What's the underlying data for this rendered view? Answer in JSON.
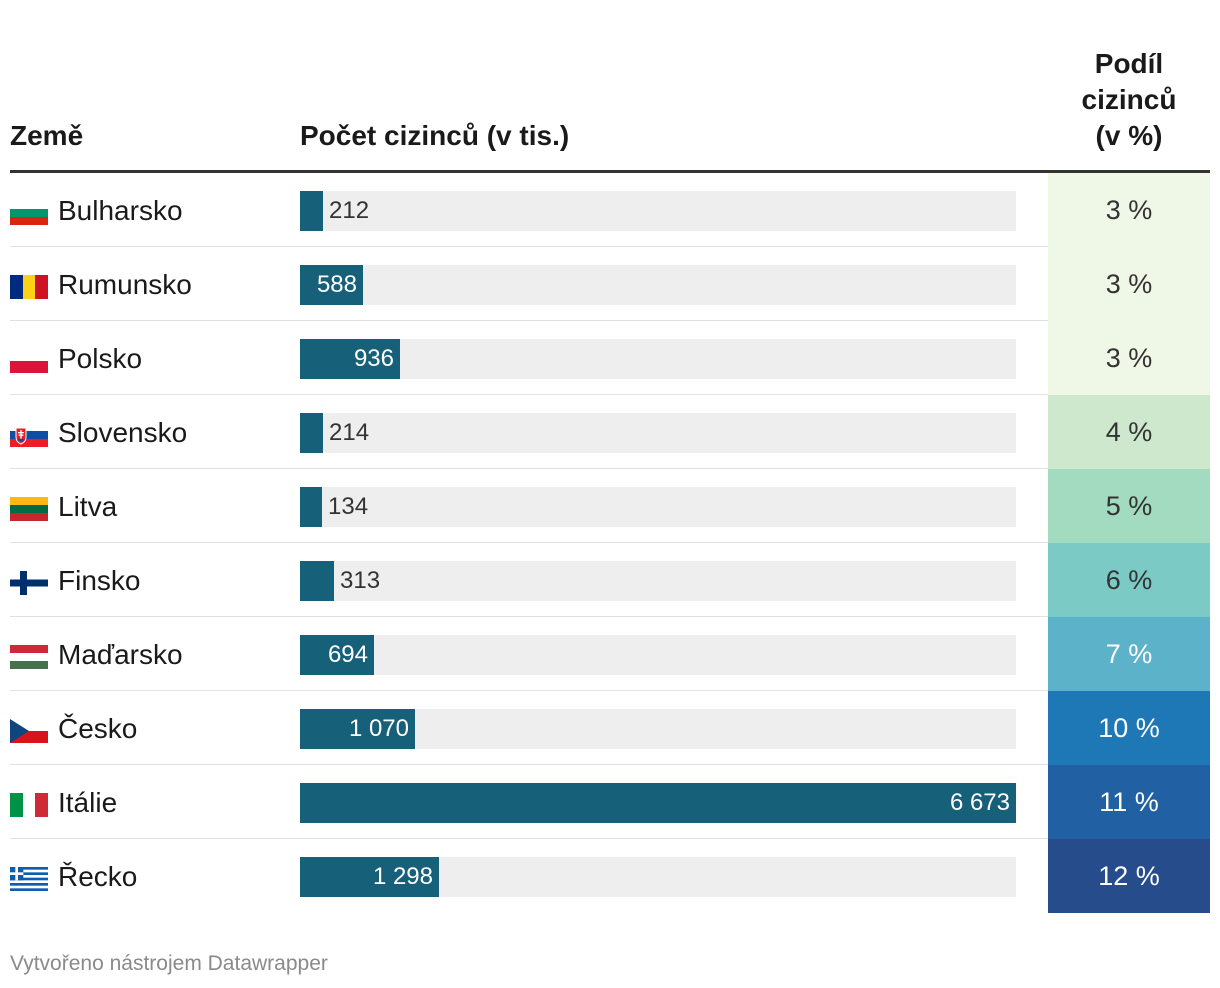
{
  "headers": {
    "country": "Země",
    "count": "Počet cizinců (v tis.)",
    "share_line1": "Podíl",
    "share_line2": "cizinců",
    "share_line3": "(v %)"
  },
  "chart_data": {
    "type": "table",
    "columns": [
      "Země",
      "Počet cizinců (v tis.)",
      "Podíl cizinců (v %)"
    ],
    "bar_max": 6673,
    "rows": [
      {
        "country": "Bulharsko",
        "count": 212,
        "count_label": "212",
        "share": 3,
        "share_label": "3 %",
        "share_bg": "#eff7e6",
        "share_fg": "#333333",
        "flag": "bulgaria-flag-icon"
      },
      {
        "country": "Rumunsko",
        "count": 588,
        "count_label": "588",
        "share": 3,
        "share_label": "3 %",
        "share_bg": "#eff7e6",
        "share_fg": "#333333",
        "flag": "romania-flag-icon"
      },
      {
        "country": "Polsko",
        "count": 936,
        "count_label": "936",
        "share": 3,
        "share_label": "3 %",
        "share_bg": "#eff7e6",
        "share_fg": "#333333",
        "flag": "poland-flag-icon"
      },
      {
        "country": "Slovensko",
        "count": 214,
        "count_label": "214",
        "share": 4,
        "share_label": "4 %",
        "share_bg": "#cde8cc",
        "share_fg": "#333333",
        "flag": "slovakia-flag-icon"
      },
      {
        "country": "Litva",
        "count": 134,
        "count_label": "134",
        "share": 5,
        "share_label": "5 %",
        "share_bg": "#a3dbc0",
        "share_fg": "#333333",
        "flag": "lithuania-flag-icon"
      },
      {
        "country": "Finsko",
        "count": 313,
        "count_label": "313",
        "share": 6,
        "share_label": "6 %",
        "share_bg": "#7bcac6",
        "share_fg": "#333333",
        "flag": "finland-flag-icon"
      },
      {
        "country": "Maďarsko",
        "count": 694,
        "count_label": "694",
        "share": 7,
        "share_label": "7 %",
        "share_bg": "#5cb3c9",
        "share_fg": "#ffffff",
        "flag": "hungary-flag-icon"
      },
      {
        "country": "Česko",
        "count": 1070,
        "count_label": "1 070",
        "share": 10,
        "share_label": "10 %",
        "share_bg": "#1f78b6",
        "share_fg": "#ffffff",
        "flag": "czechia-flag-icon"
      },
      {
        "country": "Itálie",
        "count": 6673,
        "count_label": "6 673",
        "share": 11,
        "share_label": "11 %",
        "share_bg": "#2161a3",
        "share_fg": "#ffffff",
        "flag": "italy-flag-icon"
      },
      {
        "country": "Řecko",
        "count": 1298,
        "count_label": "1 298",
        "share": 12,
        "share_label": "12 %",
        "share_bg": "#264c8c",
        "share_fg": "#ffffff",
        "flag": "greece-flag-icon"
      }
    ]
  },
  "colors": {
    "bar": "#17607a",
    "track": "#eeeeee"
  },
  "footer": {
    "credit": "Vytvořeno nástrojem Datawrapper"
  }
}
